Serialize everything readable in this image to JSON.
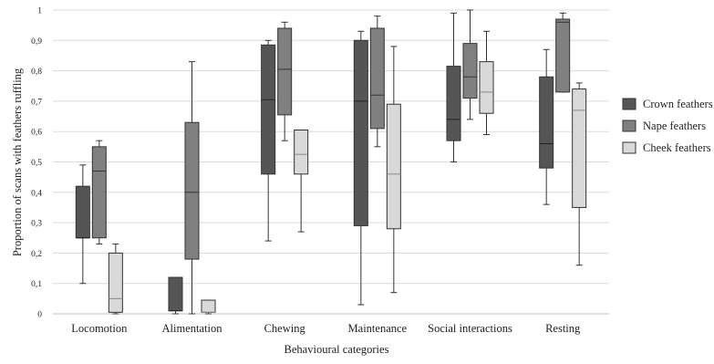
{
  "chart_data": {
    "type": "box",
    "title": "",
    "xlabel": "Behavioural categories",
    "ylabel": "Proportion of scans with feathers ruffling",
    "ylim": [
      0,
      1
    ],
    "yticks": [
      0,
      0.1,
      0.2,
      0.3,
      0.4,
      0.5,
      0.6,
      0.7,
      0.8,
      0.9,
      1
    ],
    "ytick_labels": [
      "0",
      "0,1",
      "0,2",
      "0,3",
      "0,4",
      "0,5",
      "0,6",
      "0,7",
      "0,8",
      "0,9",
      "1"
    ],
    "grid": "horizontal",
    "legend_position": "right",
    "categories": [
      "Locomotion",
      "Alimentation",
      "Chewing",
      "Maintenance",
      "Social interactions",
      "Resting"
    ],
    "series": [
      {
        "name": "Crown feathers",
        "color": "#555555",
        "median_color": "#222222",
        "boxes": [
          {
            "min": 0.1,
            "q1": 0.25,
            "median": 0.25,
            "q3": 0.42,
            "max": 0.49
          },
          {
            "min": 0.0,
            "q1": 0.01,
            "median": 0.01,
            "q3": 0.12,
            "max": 0.12
          },
          {
            "min": 0.24,
            "q1": 0.46,
            "median": 0.705,
            "q3": 0.885,
            "max": 0.9
          },
          {
            "min": 0.03,
            "q1": 0.29,
            "median": 0.7,
            "q3": 0.9,
            "max": 0.93
          },
          {
            "min": 0.5,
            "q1": 0.57,
            "median": 0.64,
            "q3": 0.815,
            "max": 0.99
          },
          {
            "min": 0.36,
            "q1": 0.48,
            "median": 0.56,
            "q3": 0.78,
            "max": 0.87
          }
        ]
      },
      {
        "name": "Nape feathers",
        "color": "#808080",
        "median_color": "#333333",
        "boxes": [
          {
            "min": 0.23,
            "q1": 0.25,
            "median": 0.47,
            "q3": 0.55,
            "max": 0.57
          },
          {
            "min": 0.0,
            "q1": 0.18,
            "median": 0.4,
            "q3": 0.63,
            "max": 0.83
          },
          {
            "min": 0.57,
            "q1": 0.655,
            "median": 0.805,
            "q3": 0.94,
            "max": 0.96
          },
          {
            "min": 0.55,
            "q1": 0.61,
            "median": 0.72,
            "q3": 0.94,
            "max": 0.98
          },
          {
            "min": 0.64,
            "q1": 0.71,
            "median": 0.78,
            "q3": 0.89,
            "max": 1.0
          },
          {
            "min": 0.73,
            "q1": 0.73,
            "median": 0.96,
            "q3": 0.97,
            "max": 0.99
          }
        ]
      },
      {
        "name": "Cheek feathers",
        "color": "#d9d9d9",
        "median_color": "#888888",
        "boxes": [
          {
            "min": 0.0,
            "q1": 0.005,
            "median": 0.05,
            "q3": 0.2,
            "max": 0.23
          },
          {
            "min": 0.0,
            "q1": 0.005,
            "median": 0.005,
            "q3": 0.045,
            "max": 0.045
          },
          {
            "min": 0.27,
            "q1": 0.46,
            "median": 0.525,
            "q3": 0.605,
            "max": 0.605
          },
          {
            "min": 0.07,
            "q1": 0.28,
            "median": 0.46,
            "q3": 0.69,
            "max": 0.88
          },
          {
            "min": 0.59,
            "q1": 0.66,
            "median": 0.73,
            "q3": 0.83,
            "max": 0.93
          },
          {
            "min": 0.16,
            "q1": 0.35,
            "median": 0.67,
            "q3": 0.74,
            "max": 0.76
          }
        ]
      }
    ]
  }
}
